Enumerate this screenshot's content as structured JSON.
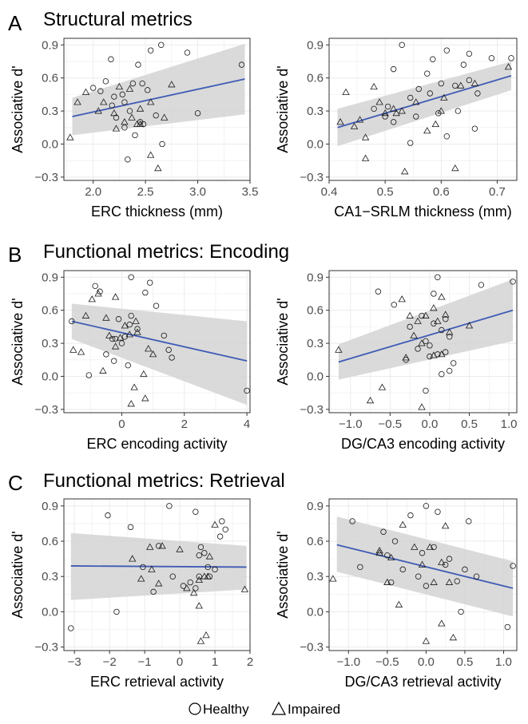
{
  "sections": [
    {
      "letter": "A",
      "title": "Structural metrics"
    },
    {
      "letter": "B",
      "title": "Functional metrics: Encoding"
    },
    {
      "letter": "C",
      "title": "Functional metrics: Retrieval"
    }
  ],
  "legend": {
    "healthy": "Healthy",
    "impaired": "Impaired"
  },
  "colors": {
    "fit_line": "#3f5bb5",
    "ribbon": "#d3d3d3",
    "grid": "#ebebeb",
    "panel_border": "#333333"
  },
  "chart_data": [
    {
      "type": "scatter",
      "section": "A",
      "xlabel": "ERC thickness (mm)",
      "ylabel": "Associative d'",
      "xlim": [
        1.72,
        3.5
      ],
      "ylim": [
        -0.33,
        0.96
      ],
      "xticks": [
        2.0,
        2.5,
        3.0,
        3.5
      ],
      "xtick_labels": [
        "2.0",
        "2.5",
        "3.0",
        "3.5"
      ],
      "yticks": [
        -0.3,
        0.0,
        0.3,
        0.6,
        0.9
      ],
      "ytick_labels": [
        "−0.3",
        "0.0",
        "0.3",
        "0.6",
        "0.9"
      ],
      "grid": true,
      "fit": {
        "x": [
          1.8,
          3.45
        ],
        "y": [
          0.25,
          0.59
        ],
        "ci_lower": [
          0.08,
          0.27
        ],
        "ci_upper": [
          0.42,
          0.91
        ]
      },
      "series": [
        {
          "name": "Healthy",
          "marker": "circle",
          "x": [
            2.65,
            2.55,
            2.17,
            2.9,
            2.43,
            2.12,
            2.0,
            2.07,
            2.2,
            2.38,
            2.47,
            2.52,
            2.28,
            2.3,
            2.18,
            3.42,
            2.35,
            2.22,
            2.6,
            3.0,
            2.48,
            2.3,
            2.45,
            2.66,
            2.33,
            2.4
          ],
          "y": [
            0.9,
            0.85,
            0.77,
            0.83,
            0.72,
            0.57,
            0.51,
            0.48,
            0.43,
            0.55,
            0.55,
            0.49,
            0.45,
            0.38,
            0.35,
            0.72,
            0.3,
            0.24,
            0.26,
            0.28,
            0.18,
            0.15,
            0.2,
            0.0,
            -0.14,
            0.08
          ]
        },
        {
          "name": "Impaired",
          "marker": "triangle",
          "x": [
            1.93,
            1.85,
            2.05,
            2.35,
            2.25,
            2.1,
            2.55,
            2.45,
            2.75,
            2.3,
            2.37,
            2.42,
            2.2,
            1.78,
            2.22,
            2.45,
            2.68,
            2.62,
            2.55
          ],
          "y": [
            0.47,
            0.38,
            0.3,
            0.5,
            0.52,
            0.38,
            0.38,
            0.32,
            0.54,
            0.2,
            0.24,
            0.18,
            0.28,
            0.06,
            0.14,
            0.18,
            0.24,
            -0.22,
            -0.1
          ]
        }
      ]
    },
    {
      "type": "scatter",
      "section": "A",
      "xlabel": "CA1−SRLM thickness (mm)",
      "ylabel": "Associative d'",
      "xlim": [
        0.4,
        0.735
      ],
      "ylim": [
        -0.33,
        0.96
      ],
      "xticks": [
        0.4,
        0.5,
        0.6,
        0.7
      ],
      "xtick_labels": [
        "0.4",
        "0.5",
        "0.6",
        "0.7"
      ],
      "yticks": [
        -0.3,
        0.0,
        0.3,
        0.6,
        0.9
      ],
      "ytick_labels": [
        "−0.3",
        "0.0",
        "0.3",
        "0.6",
        "0.9"
      ],
      "grid": true,
      "fit": {
        "x": [
          0.415,
          0.725
        ],
        "y": [
          0.15,
          0.62
        ],
        "ci_lower": [
          -0.02,
          0.49
        ],
        "ci_upper": [
          0.32,
          0.75
        ]
      },
      "series": [
        {
          "name": "Healthy",
          "marker": "circle",
          "x": [
            0.53,
            0.61,
            0.65,
            0.69,
            0.725,
            0.585,
            0.64,
            0.515,
            0.575,
            0.6,
            0.625,
            0.56,
            0.58,
            0.545,
            0.505,
            0.48,
            0.595,
            0.555,
            0.665,
            0.515,
            0.63,
            0.5,
            0.61,
            0.545,
            0.66,
            0.65
          ],
          "y": [
            0.9,
            0.85,
            0.82,
            0.78,
            0.78,
            0.77,
            0.72,
            0.68,
            0.64,
            0.55,
            0.53,
            0.5,
            0.46,
            0.42,
            0.34,
            0.32,
            0.28,
            0.25,
            0.46,
            0.2,
            0.3,
            0.25,
            0.07,
            0.01,
            0.14,
            0.58
          ]
        },
        {
          "name": "Impaired",
          "marker": "triangle",
          "x": [
            0.43,
            0.48,
            0.5,
            0.515,
            0.555,
            0.605,
            0.635,
            0.66,
            0.72,
            0.42,
            0.445,
            0.465,
            0.455,
            0.53,
            0.575,
            0.59,
            0.52,
            0.49,
            0.465,
            0.625,
            0.535,
            0.6
          ],
          "y": [
            0.47,
            0.52,
            0.28,
            0.32,
            0.38,
            0.42,
            0.53,
            0.55,
            0.7,
            0.2,
            0.16,
            0.06,
            0.22,
            0.3,
            0.12,
            0.18,
            0.28,
            0.38,
            -0.13,
            -0.22,
            -0.25,
            0.3
          ]
        }
      ]
    },
    {
      "type": "scatter",
      "section": "B",
      "xlabel": "ERC encoding activity",
      "ylabel": "Associative d'",
      "xlim": [
        -1.85,
        4.1
      ],
      "ylim": [
        -0.33,
        0.96
      ],
      "xticks": [
        0,
        2,
        4
      ],
      "xtick_labels": [
        "0",
        "2",
        "4"
      ],
      "yticks": [
        -0.3,
        0.0,
        0.3,
        0.6,
        0.9
      ],
      "ytick_labels": [
        "−0.3",
        "0.0",
        "0.3",
        "0.6",
        "0.9"
      ],
      "grid": true,
      "fit": {
        "x": [
          -1.6,
          4.0
        ],
        "y": [
          0.5,
          0.14
        ],
        "ci_lower": [
          0.34,
          -0.26
        ],
        "ci_upper": [
          0.66,
          0.5
        ]
      },
      "series": [
        {
          "name": "Healthy",
          "marker": "circle",
          "x": [
            0.3,
            0.9,
            -0.85,
            -0.7,
            0.75,
            1.1,
            -1.6,
            -0.1,
            0.3,
            0.25,
            0.5,
            0.1,
            -0.3,
            0.0,
            1.35,
            -0.25,
            -1.05,
            0.2,
            1.5,
            1.6,
            -0.5,
            4.0,
            -0.2
          ],
          "y": [
            0.9,
            0.85,
            0.82,
            0.77,
            0.76,
            0.64,
            0.5,
            0.52,
            0.55,
            0.47,
            0.43,
            0.36,
            0.34,
            0.3,
            0.37,
            0.14,
            0.01,
            0.1,
            0.24,
            0.17,
            0.2,
            -0.13,
            0.34
          ]
        },
        {
          "name": "Impaired",
          "marker": "triangle",
          "x": [
            -0.95,
            -1.15,
            -0.2,
            -0.75,
            -0.5,
            -0.4,
            0.45,
            0.1,
            -0.2,
            -1.55,
            -1.3,
            0.85,
            0.5,
            1.0,
            -0.6,
            0.7,
            0.25,
            -0.05,
            0.4,
            0.75,
            0.3
          ],
          "y": [
            0.7,
            0.55,
            0.72,
            0.75,
            0.53,
            0.37,
            0.5,
            0.46,
            0.27,
            0.24,
            0.22,
            0.25,
            0.4,
            0.2,
            0.05,
            0.02,
            0.38,
            0.35,
            -0.1,
            -0.2,
            -0.25
          ]
        }
      ]
    },
    {
      "type": "scatter",
      "section": "B",
      "xlabel": "DG/CA3 encoding activity",
      "ylabel": "Associative d'",
      "xlim": [
        -1.27,
        1.1
      ],
      "ylim": [
        -0.33,
        0.96
      ],
      "xticks": [
        -1.0,
        -0.5,
        0.0,
        0.5,
        1.0
      ],
      "xtick_labels": [
        "−1.0",
        "−0.5",
        "0.0",
        "0.5",
        "1.0"
      ],
      "yticks": [
        -0.3,
        0.0,
        0.3,
        0.6,
        0.9
      ],
      "ytick_labels": [
        "−0.3",
        "0.0",
        "0.3",
        "0.6",
        "0.9"
      ],
      "grid": true,
      "fit": {
        "x": [
          -1.15,
          1.05
        ],
        "y": [
          0.13,
          0.6
        ],
        "ci_lower": [
          -0.03,
          0.32
        ],
        "ci_upper": [
          0.29,
          0.88
        ]
      },
      "series": [
        {
          "name": "Healthy",
          "marker": "circle",
          "x": [
            0.1,
            0.65,
            -0.65,
            1.05,
            -0.45,
            -0.1,
            0.2,
            0.05,
            -0.25,
            0.15,
            0.25,
            -0.05,
            0.0,
            -0.15,
            0.2,
            0.1,
            0.0,
            -0.3,
            0.3,
            0.25,
            0.15,
            -0.05,
            0.05
          ],
          "y": [
            0.9,
            0.83,
            0.77,
            0.86,
            0.65,
            0.55,
            0.52,
            0.48,
            0.45,
            0.42,
            0.36,
            0.32,
            0.28,
            0.25,
            0.22,
            0.2,
            0.18,
            0.15,
            0.12,
            0.05,
            0.02,
            -0.13,
            0.75
          ]
        },
        {
          "name": "Impaired",
          "marker": "triangle",
          "x": [
            -0.35,
            0.15,
            -0.25,
            0.05,
            0.1,
            0.5,
            -0.15,
            -0.05,
            0.2,
            -0.1,
            0.25,
            -1.15,
            -0.3,
            0.15,
            -0.2,
            0.05,
            -0.6,
            -0.75,
            -0.1
          ],
          "y": [
            0.7,
            0.72,
            0.55,
            0.62,
            0.5,
            0.46,
            0.5,
            0.55,
            0.56,
            0.3,
            0.4,
            0.24,
            0.17,
            0.2,
            0.37,
            0.19,
            -0.1,
            -0.22,
            -0.28
          ]
        }
      ]
    },
    {
      "type": "scatter",
      "section": "C",
      "xlabel": "ERC retrieval activity",
      "ylabel": "Associative d'",
      "xlim": [
        -3.3,
        2.0
      ],
      "ylim": [
        -0.33,
        0.96
      ],
      "xticks": [
        -3,
        -2,
        -1,
        0,
        1,
        2
      ],
      "xtick_labels": [
        "−3",
        "−2",
        "−1",
        "0",
        "1",
        "2"
      ],
      "yticks": [
        -0.3,
        0.0,
        0.3,
        0.6,
        0.9
      ],
      "ytick_labels": [
        "−0.3",
        "0.0",
        "0.3",
        "0.6",
        "0.9"
      ],
      "grid": true,
      "fit": {
        "x": [
          -3.1,
          1.9
        ],
        "y": [
          0.39,
          0.38
        ],
        "ci_lower": [
          0.1,
          0.19
        ],
        "ci_upper": [
          0.67,
          0.56
        ]
      },
      "series": [
        {
          "name": "Healthy",
          "marker": "circle",
          "x": [
            -0.3,
            0.45,
            -2.05,
            1.2,
            -1.4,
            1.3,
            1.15,
            -0.6,
            0.6,
            0.7,
            0.55,
            -1.05,
            -0.2,
            0.3,
            1.0,
            0.85,
            -0.75,
            0.1,
            0.45,
            -1.8,
            -3.1,
            0.55,
            0.8
          ],
          "y": [
            0.9,
            0.85,
            0.82,
            0.77,
            0.72,
            0.7,
            0.64,
            0.56,
            0.55,
            0.5,
            0.48,
            0.38,
            0.3,
            0.25,
            0.36,
            0.3,
            0.17,
            0.22,
            0.2,
            0.0,
            -0.14,
            0.3,
            0.38
          ]
        },
        {
          "name": "Impaired",
          "marker": "triangle",
          "x": [
            -0.85,
            0.0,
            1.0,
            -0.5,
            -1.35,
            -0.8,
            0.85,
            0.55,
            -1.1,
            0.2,
            0.7,
            1.85,
            -0.6,
            0.55,
            0.4,
            0.75,
            0.6,
            0.8
          ],
          "y": [
            0.55,
            0.53,
            0.74,
            0.56,
            0.45,
            0.36,
            0.47,
            0.27,
            0.28,
            0.2,
            0.3,
            0.19,
            0.24,
            0.05,
            0.16,
            -0.2,
            -0.25,
            0.3
          ]
        }
      ]
    },
    {
      "type": "scatter",
      "section": "C",
      "xlabel": "DG/CA3 retrieval activity",
      "ylabel": "Associative d'",
      "xlim": [
        -1.25,
        1.17
      ],
      "ylim": [
        -0.33,
        0.96
      ],
      "xticks": [
        -1.0,
        -0.5,
        0.0,
        0.5,
        1.0
      ],
      "xtick_labels": [
        "−1.0",
        "−0.5",
        "0.0",
        "0.5",
        "1.0"
      ],
      "yticks": [
        -0.3,
        0.0,
        0.3,
        0.6,
        0.9
      ],
      "ytick_labels": [
        "−0.3",
        "0.0",
        "0.3",
        "0.6",
        "0.9"
      ],
      "grid": true,
      "fit": {
        "x": [
          -1.15,
          1.12
        ],
        "y": [
          0.57,
          0.2
        ],
        "ci_lower": [
          0.34,
          -0.04
        ],
        "ci_upper": [
          0.81,
          0.43
        ]
      },
      "series": [
        {
          "name": "Healthy",
          "marker": "circle",
          "x": [
            0.0,
            0.15,
            -0.2,
            -0.95,
            0.55,
            -0.55,
            -0.4,
            0.1,
            -0.05,
            0.3,
            0.25,
            -0.3,
            -0.1,
            0.5,
            -0.85,
            0.4,
            -0.45,
            0.0,
            0.45,
            1.12,
            0.65,
            -0.5,
            1.05
          ],
          "y": [
            0.9,
            0.85,
            0.82,
            0.77,
            0.77,
            0.68,
            0.6,
            0.55,
            0.5,
            0.45,
            0.4,
            0.36,
            0.3,
            0.36,
            0.38,
            0.26,
            0.25,
            0.22,
            0.0,
            0.39,
            0.3,
            0.48,
            -0.13
          ]
        },
        {
          "name": "Impaired",
          "marker": "triangle",
          "x": [
            -0.3,
            -0.15,
            0.05,
            0.25,
            -0.6,
            -0.45,
            -0.05,
            0.2,
            0.1,
            -0.6,
            -0.5,
            0.3,
            -0.35,
            -1.2,
            0.2,
            0.0,
            0.35
          ],
          "y": [
            0.74,
            0.55,
            0.55,
            0.73,
            0.52,
            0.46,
            0.4,
            0.42,
            0.25,
            0.5,
            0.25,
            0.25,
            0.06,
            0.28,
            -0.1,
            -0.25,
            -0.22
          ]
        }
      ]
    }
  ]
}
